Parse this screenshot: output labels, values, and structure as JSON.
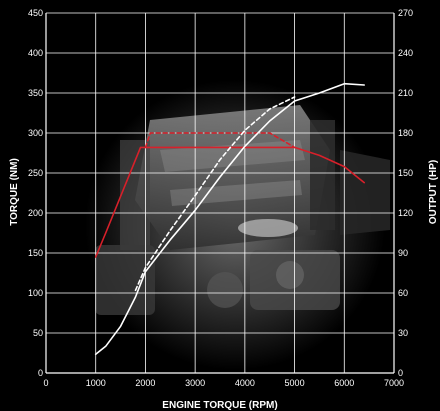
{
  "chart_data": {
    "type": "line",
    "xlabel": "ENGINE TORQUE (RPM)",
    "ylabel": "TORQUE (NM)",
    "y2label": "OUTPUT (HP)",
    "xlim": [
      0,
      7000
    ],
    "ylim": [
      0,
      450
    ],
    "y2lim": [
      0,
      270
    ],
    "x_ticks": [
      0,
      1000,
      2000,
      3000,
      4000,
      5000,
      6000,
      7000
    ],
    "y_ticks": [
      0,
      50,
      100,
      150,
      200,
      250,
      300,
      350,
      400,
      450
    ],
    "y2_ticks": [
      0,
      30,
      60,
      90,
      120,
      150,
      180,
      210,
      240,
      270
    ],
    "grid": true,
    "background": "engine photograph",
    "series": [
      {
        "axis": "left",
        "color": "#d8202a",
        "dash": "solid",
        "points": [
          [
            1000,
            145
          ],
          [
            1200,
            175
          ],
          [
            1900,
            282
          ],
          [
            2000,
            282
          ],
          [
            5000,
            282
          ],
          [
            5500,
            272
          ],
          [
            6000,
            258
          ],
          [
            6400,
            238
          ]
        ]
      },
      {
        "axis": "left",
        "color": "#d8202a",
        "dash": "dashed",
        "points": [
          [
            2000,
            282
          ],
          [
            2100,
            300
          ],
          [
            4500,
            300
          ],
          [
            5000,
            282
          ]
        ]
      },
      {
        "axis": "right",
        "color": "#ffffff",
        "dash": "solid",
        "points": [
          [
            1000,
            14
          ],
          [
            1200,
            20
          ],
          [
            1500,
            35
          ],
          [
            1800,
            57
          ],
          [
            2000,
            76
          ],
          [
            2500,
            100
          ],
          [
            3000,
            122
          ],
          [
            3500,
            147
          ],
          [
            4000,
            170
          ],
          [
            4500,
            189
          ],
          [
            5000,
            204
          ],
          [
            5500,
            210
          ],
          [
            6000,
            217
          ],
          [
            6400,
            216
          ]
        ]
      },
      {
        "axis": "right",
        "color": "#ffffff",
        "dash": "dashed",
        "points": [
          [
            1800,
            62
          ],
          [
            2000,
            79
          ],
          [
            2500,
            107
          ],
          [
            3000,
            133
          ],
          [
            3500,
            160
          ],
          [
            4000,
            182
          ],
          [
            4500,
            198
          ],
          [
            5000,
            207
          ]
        ]
      }
    ]
  }
}
